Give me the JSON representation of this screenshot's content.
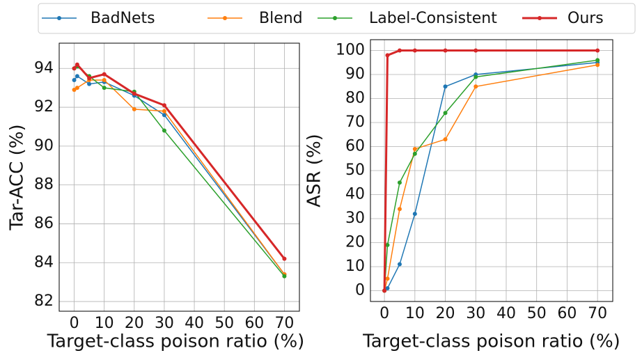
{
  "chart_data": [
    {
      "type": "line",
      "x_label": "Target-class poison ratio (%)",
      "y_label": "Tar-ACC (%)",
      "x": [
        0,
        1,
        5,
        10,
        20,
        30,
        70
      ],
      "xlim": [
        -5,
        75
      ],
      "xticks": [
        0,
        10,
        20,
        30,
        40,
        50,
        60,
        70
      ],
      "ylim": [
        81.5,
        95.3
      ],
      "yticks": [
        82,
        84,
        86,
        88,
        90,
        92,
        94
      ],
      "grid": true,
      "series": [
        {
          "name": "BadNets",
          "color": "#1f77b4",
          "values": [
            93.4,
            93.6,
            93.2,
            93.3,
            92.6,
            91.6,
            83.4
          ]
        },
        {
          "name": "Blend",
          "color": "#ff7f0e",
          "values": [
            92.9,
            93.0,
            93.4,
            93.4,
            91.9,
            91.8,
            83.4
          ]
        },
        {
          "name": "Label-Consistent",
          "color": "#2ca02c",
          "values": [
            94.0,
            94.1,
            93.6,
            93.0,
            92.8,
            90.8,
            83.3
          ]
        },
        {
          "name": "Ours",
          "color": "#d62728",
          "values": [
            94.0,
            94.2,
            93.5,
            93.7,
            92.7,
            92.1,
            84.2
          ]
        }
      ]
    },
    {
      "type": "line",
      "x_label": "Target-class poison ratio (%)",
      "y_label": "ASR (%)",
      "x": [
        0,
        1,
        5,
        10,
        20,
        30,
        70
      ],
      "xlim": [
        -4.6,
        75
      ],
      "xticks": [
        0,
        10,
        20,
        30,
        40,
        50,
        60,
        70
      ],
      "ylim": [
        -4.5,
        104.5
      ],
      "yticks": [
        0,
        10,
        20,
        30,
        40,
        50,
        60,
        70,
        80,
        90,
        100
      ],
      "grid": true,
      "series": [
        {
          "color": "#1f77b4",
          "values": [
            0,
            1,
            11,
            32,
            85,
            90,
            95
          ]
        },
        {
          "color": "#ff7f0e",
          "values": [
            0,
            5,
            34,
            59,
            63,
            85,
            94
          ]
        },
        {
          "color": "#2ca02c",
          "values": [
            0,
            19,
            45,
            57,
            74,
            89,
            96
          ]
        },
        {
          "color": "#d62728",
          "values": [
            0,
            98,
            100,
            100,
            100,
            100,
            100
          ]
        }
      ]
    }
  ]
}
